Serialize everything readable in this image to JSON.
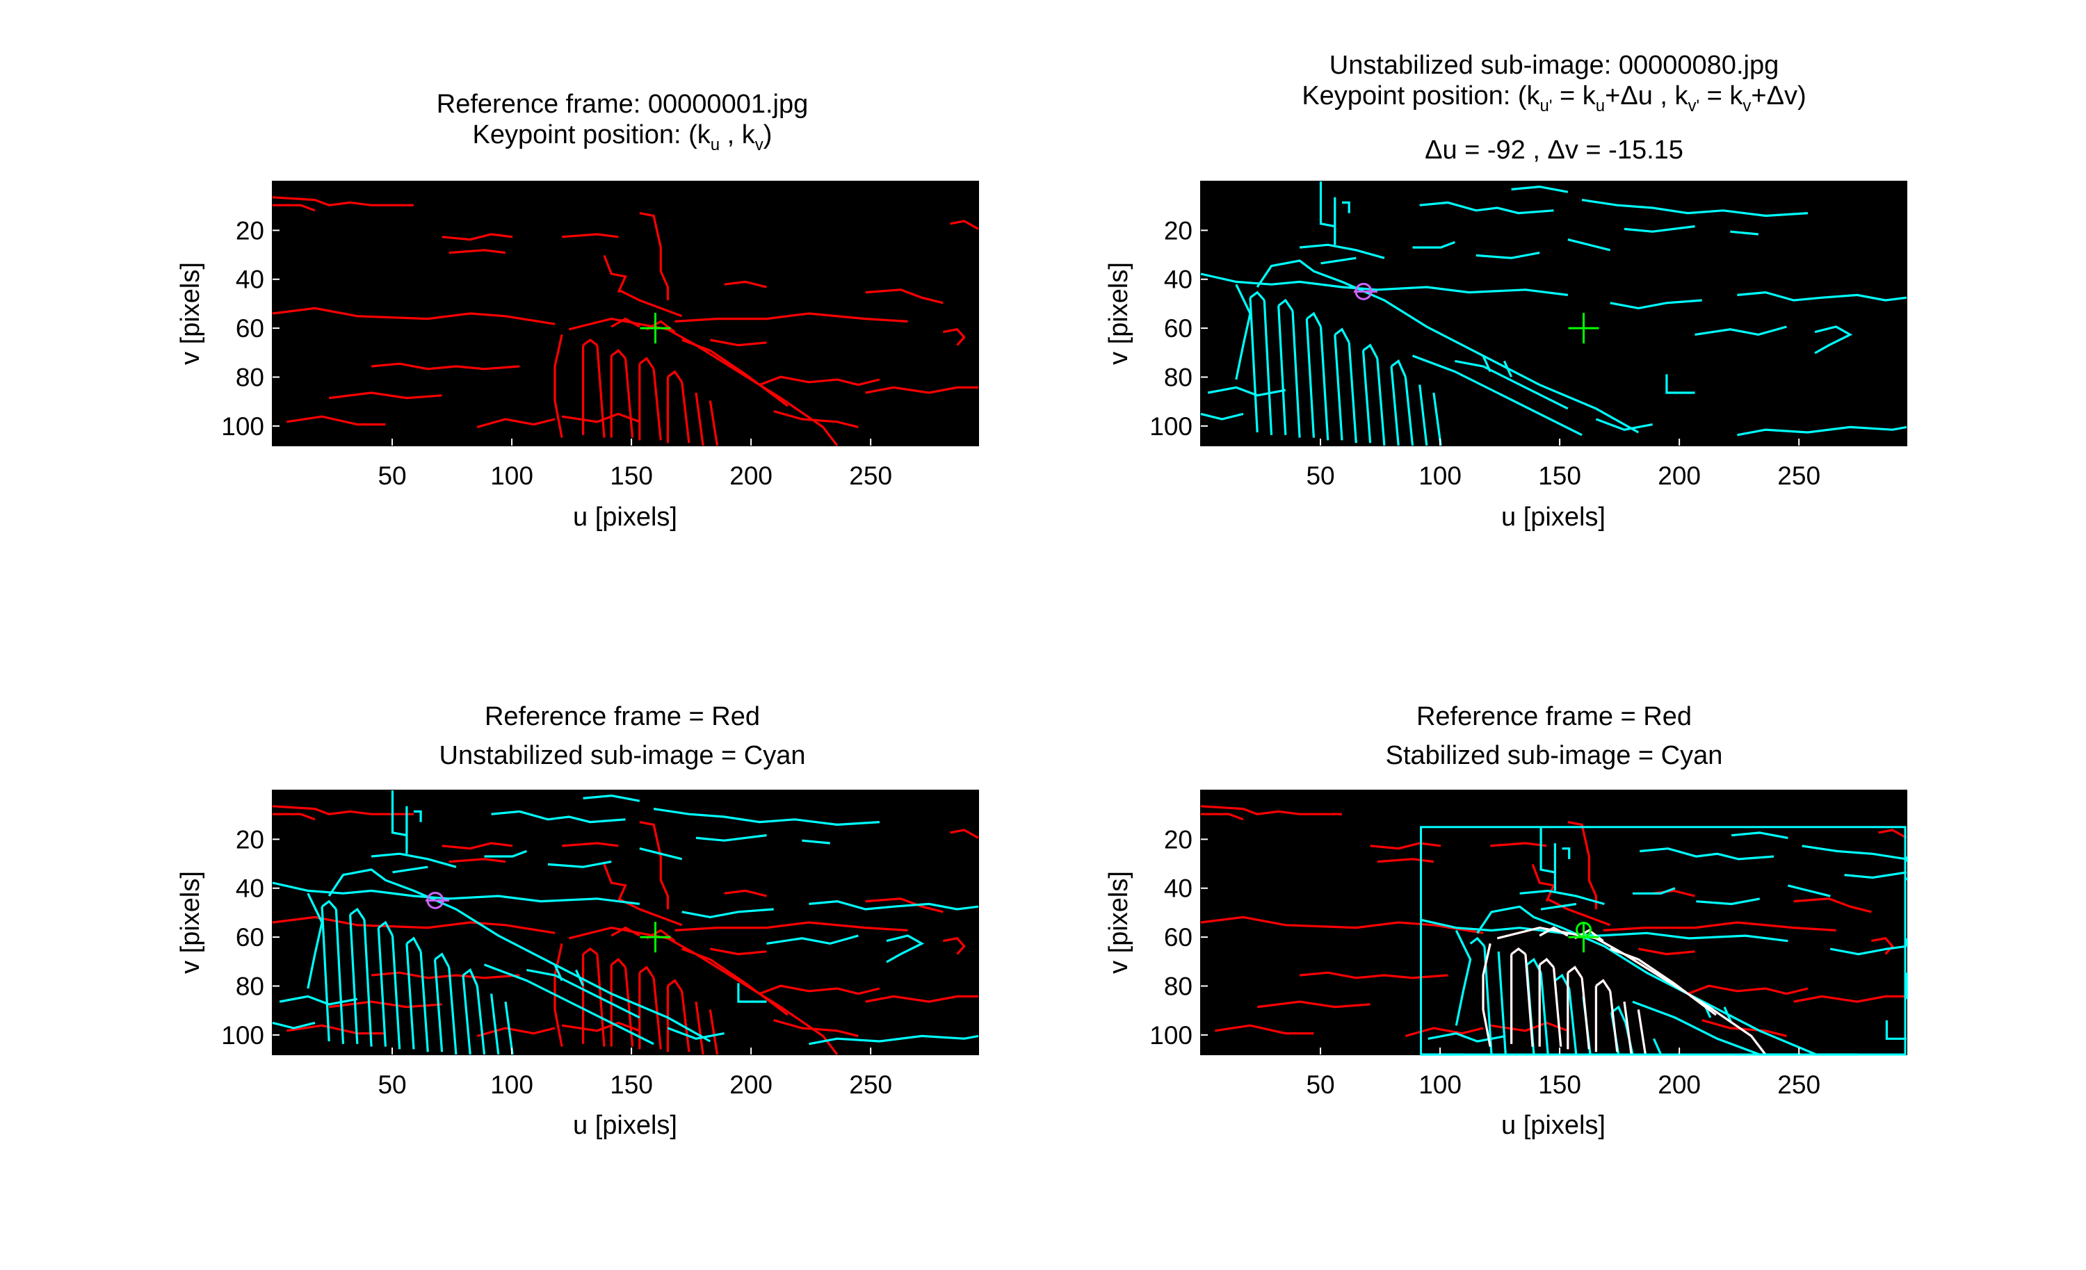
{
  "colors": {
    "reference_edges": "#ff0000",
    "subimage_edges": "#00ffff",
    "overlap_edges": "#ffffff",
    "keypoint_marker": "#00ff00",
    "keypoint_circle": "#cc66ff",
    "axes_background": "#000000"
  },
  "panels": [
    {
      "title_line1": "Reference frame: 00000001.jpg",
      "title_line2": {
        "pre": "Keypoint position: (k",
        "s1": "u",
        "mid": " , k",
        "s2": "v",
        "post": ")"
      }
    },
    {
      "title_line1": "Unstabilized sub-image: 00000080.jpg",
      "title_line2": {
        "pre": "Keypoint position: (k",
        "s1": "u'",
        "a": " = k",
        "s2": "u",
        "b": "+Δu , k",
        "s3": "v'",
        "c": " = k",
        "s4": "v",
        "d": "+Δv)"
      },
      "title_line3": "Δu = -92 ,  Δv = -15.15"
    },
    {
      "title_line1": "Reference frame = Red",
      "title_line2": "Unstabilized sub-image = Cyan"
    },
    {
      "title_line1": "Reference frame = Red",
      "title_line2": "Stabilized sub-image = Cyan"
    }
  ],
  "chart_data": [
    {
      "type": "image",
      "title": "Reference frame: 00000001.jpg",
      "xlabel": "u [pixels]",
      "ylabel": "v [pixels]",
      "xlim": [
        0,
        295
      ],
      "ylim": [
        108,
        0
      ],
      "xticks": [
        50,
        100,
        150,
        200,
        250
      ],
      "yticks": [
        20,
        40,
        60,
        80,
        100
      ],
      "layers": [
        "red"
      ],
      "keypoint": {
        "u": 160,
        "v": 60,
        "marker": "+"
      }
    },
    {
      "type": "image",
      "title": "Unstabilized sub-image: 00000080.jpg",
      "xlabel": "u [pixels]",
      "ylabel": "v [pixels]",
      "xlim": [
        0,
        295
      ],
      "ylim": [
        108,
        0
      ],
      "xticks": [
        50,
        100,
        150,
        200,
        250
      ],
      "yticks": [
        20,
        40,
        60,
        80,
        100
      ],
      "layers": [
        "cyan"
      ],
      "keypoint": {
        "u": 160,
        "v": 60,
        "marker": "+"
      },
      "shifted_keypoint": {
        "u": 68,
        "v": 45,
        "marker": "o"
      },
      "delta_u": -92,
      "delta_v": -15.15
    },
    {
      "type": "image",
      "title": "Reference frame = Red, Unstabilized sub-image = Cyan",
      "xlabel": "u [pixels]",
      "ylabel": "v [pixels]",
      "xlim": [
        0,
        295
      ],
      "ylim": [
        108,
        0
      ],
      "xticks": [
        50,
        100,
        150,
        200,
        250
      ],
      "yticks": [
        20,
        40,
        60,
        80,
        100
      ],
      "layers": [
        "red",
        "cyan"
      ],
      "keypoint": {
        "u": 160,
        "v": 60,
        "marker": "+"
      },
      "shifted_keypoint": {
        "u": 68,
        "v": 45,
        "marker": "o"
      }
    },
    {
      "type": "image",
      "title": "Reference frame = Red, Stabilized sub-image = Cyan",
      "xlabel": "u [pixels]",
      "ylabel": "v [pixels]",
      "xlim": [
        0,
        295
      ],
      "ylim": [
        108,
        0
      ],
      "xticks": [
        50,
        100,
        150,
        200,
        250
      ],
      "yticks": [
        20,
        40,
        60,
        80,
        100
      ],
      "layers": [
        "red",
        "cyan-shifted",
        "white-overlap"
      ],
      "keypoint": {
        "u": 160,
        "v": 60,
        "marker": "+"
      },
      "stabilized_box": {
        "u_min": 92,
        "u_max": 295,
        "v_min": 15,
        "v_max": 108
      }
    }
  ]
}
